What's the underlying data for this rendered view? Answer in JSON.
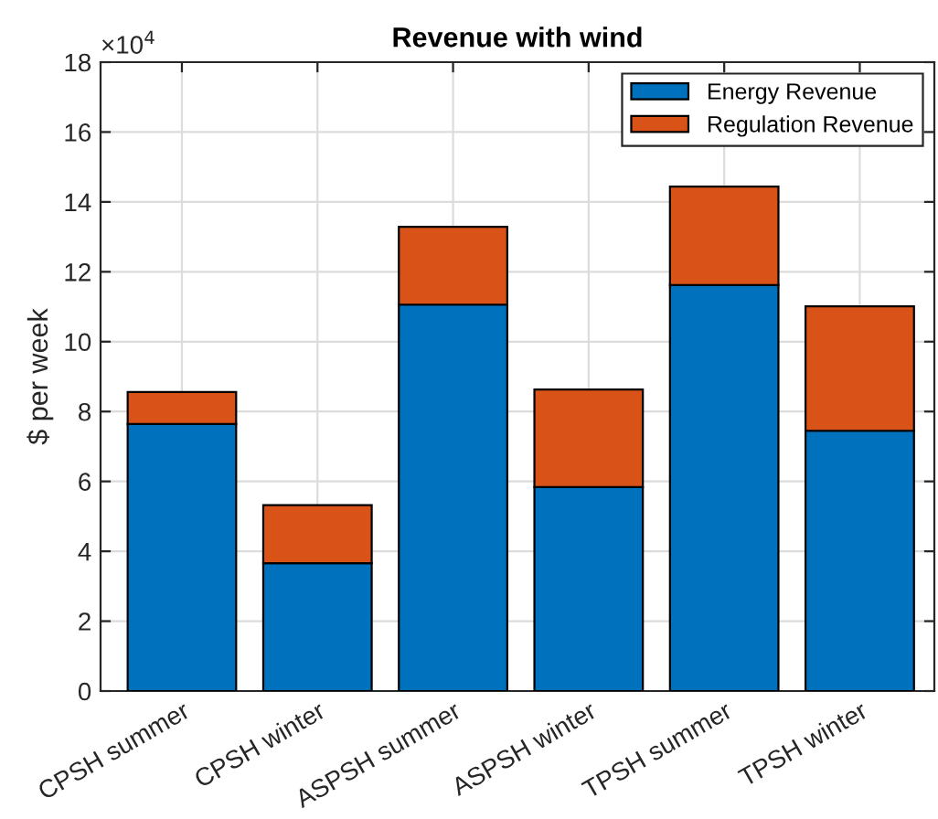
{
  "chart_data": {
    "type": "bar",
    "title": "Revenue with wind",
    "ylabel": "$ per week",
    "categories": [
      "CPSH summer",
      "CPSH winter",
      "ASPSH summer",
      "ASPSH winter",
      "TPSH summer",
      "TPSH winter"
    ],
    "series": [
      {
        "name": "Energy Revenue",
        "color": "#0072bd",
        "values": [
          7.64,
          3.66,
          11.06,
          5.84,
          11.62,
          7.45
        ]
      },
      {
        "name": "Regulation Revenue",
        "color": "#d95319",
        "values": [
          0.92,
          1.66,
          2.23,
          2.79,
          2.82,
          3.56
        ]
      }
    ],
    "stacked": true,
    "ylim": [
      0,
      18
    ],
    "yticks": [
      0,
      2,
      4,
      6,
      8,
      10,
      12,
      14,
      16,
      18
    ],
    "grid": true,
    "legend": "top right",
    "annotations": [
      "×10$^{4}$"
    ]
  }
}
